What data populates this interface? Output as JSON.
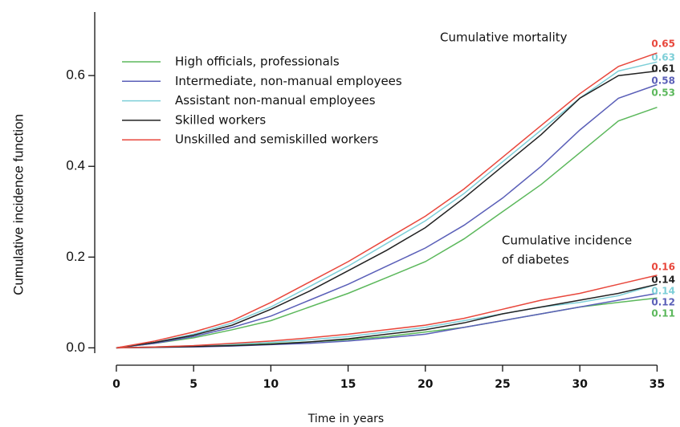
{
  "chart_data": {
    "type": "line",
    "y_label": "Cumulative incidence function",
    "x_label": "Time in years",
    "annotations": [
      "Cumulative mortality",
      "Cumulative incidence",
      "of diabetes"
    ],
    "x": [
      0,
      2.5,
      5,
      7.5,
      10,
      12.5,
      15,
      17.5,
      20,
      22.5,
      25,
      27.5,
      30,
      32.5,
      35
    ],
    "xlim": [
      -1.4,
      35.6
    ],
    "xticks": [
      0,
      5,
      10,
      15,
      20,
      25,
      30,
      35
    ],
    "ylim": [
      -0.04,
      0.74
    ],
    "yticks": [
      {
        "value": 0,
        "label": "0.0"
      },
      0.2,
      0.4,
      0.6
    ],
    "series": [
      {
        "name": "High officials, professionals",
        "color": "#5cb85c",
        "mortality": [
          0,
          0.01,
          0.022,
          0.04,
          0.06,
          0.09,
          0.12,
          0.155,
          0.19,
          0.24,
          0.3,
          0.36,
          0.43,
          0.5,
          0.53
        ],
        "diabetes": [
          0,
          0.002,
          0.004,
          0.006,
          0.009,
          0.013,
          0.018,
          0.025,
          0.035,
          0.045,
          0.06,
          0.075,
          0.09,
          0.1,
          0.11
        ]
      },
      {
        "name": "Intermediate, non-manual employees",
        "color": "#5a5fb8",
        "mortality": [
          0,
          0.01,
          0.025,
          0.045,
          0.07,
          0.105,
          0.14,
          0.18,
          0.22,
          0.27,
          0.33,
          0.4,
          0.48,
          0.55,
          0.58
        ],
        "diabetes": [
          0,
          0.001,
          0.002,
          0.004,
          0.007,
          0.01,
          0.015,
          0.022,
          0.03,
          0.045,
          0.06,
          0.075,
          0.09,
          0.105,
          0.12
        ]
      },
      {
        "name": "Assistant non-manual employees",
        "color": "#7ecfd8",
        "mortality": [
          0,
          0.012,
          0.03,
          0.055,
          0.09,
          0.135,
          0.18,
          0.23,
          0.28,
          0.34,
          0.41,
          0.48,
          0.55,
          0.61,
          0.63
        ],
        "diabetes": [
          0,
          0.002,
          0.005,
          0.008,
          0.012,
          0.018,
          0.025,
          0.035,
          0.045,
          0.06,
          0.075,
          0.09,
          0.1,
          0.115,
          0.14
        ]
      },
      {
        "name": "Skilled workers",
        "color": "#222222",
        "mortality": [
          0,
          0.012,
          0.028,
          0.05,
          0.085,
          0.125,
          0.17,
          0.215,
          0.265,
          0.33,
          0.4,
          0.47,
          0.55,
          0.6,
          0.61
        ],
        "diabetes": [
          0,
          0.001,
          0.003,
          0.005,
          0.008,
          0.013,
          0.02,
          0.03,
          0.04,
          0.055,
          0.075,
          0.09,
          0.105,
          0.12,
          0.14
        ]
      },
      {
        "name": "Unskilled and semiskilled workers",
        "color": "#e8473c",
        "mortality": [
          0,
          0.015,
          0.035,
          0.06,
          0.1,
          0.145,
          0.19,
          0.24,
          0.29,
          0.35,
          0.42,
          0.49,
          0.56,
          0.62,
          0.65
        ],
        "diabetes": [
          0,
          0.002,
          0.005,
          0.01,
          0.015,
          0.022,
          0.03,
          0.04,
          0.05,
          0.065,
          0.085,
          0.105,
          0.12,
          0.14,
          0.16
        ]
      }
    ]
  }
}
